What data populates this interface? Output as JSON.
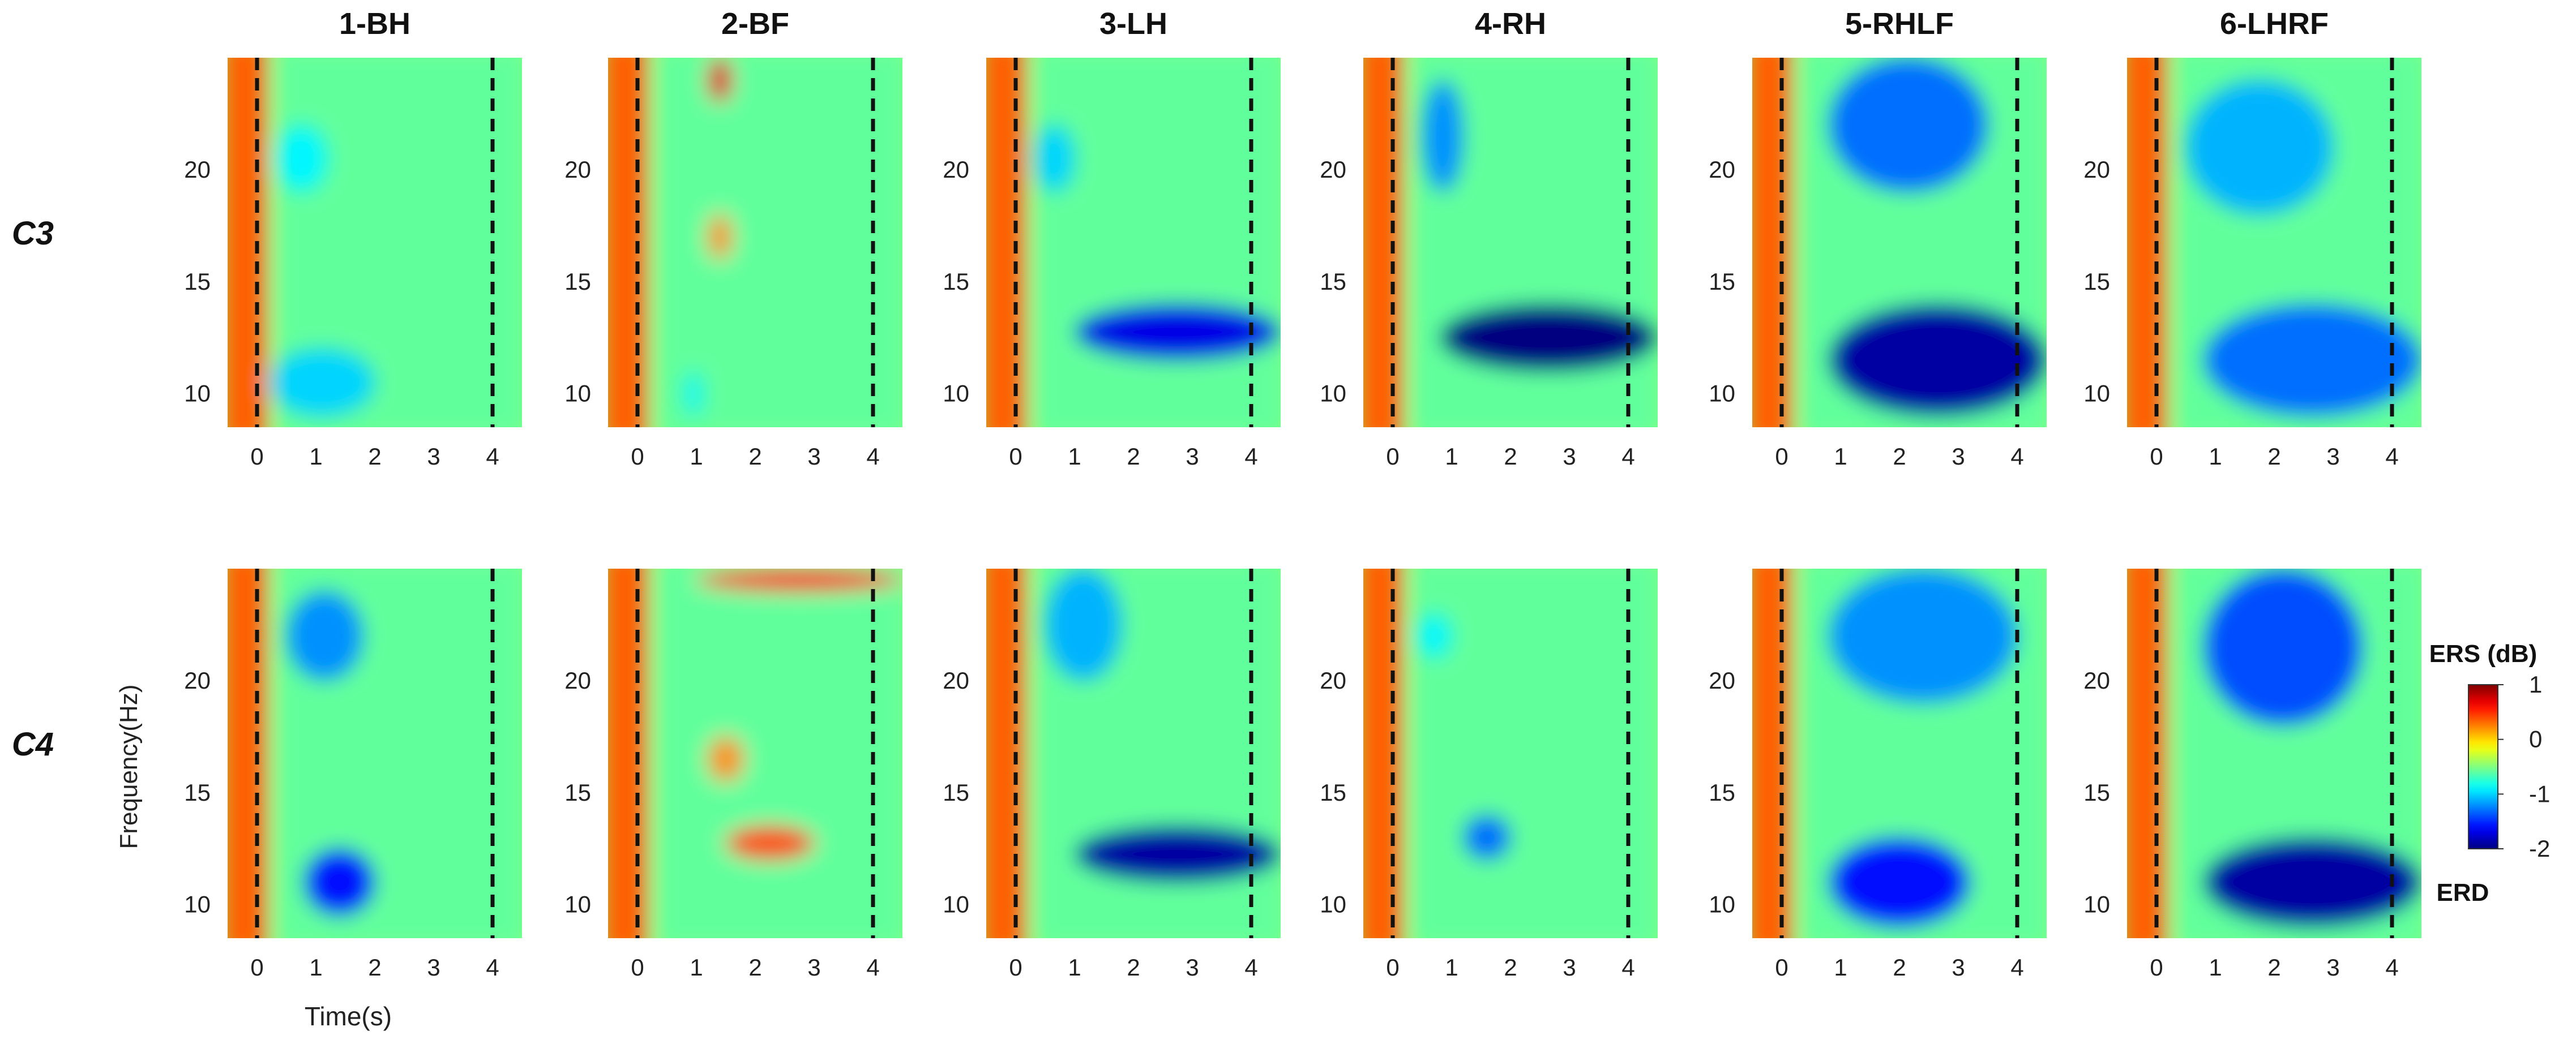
{
  "chart_data": {
    "type": "heatmap",
    "column_titles": [
      "1-BH",
      "2-BF",
      "3-LH",
      "4-RH",
      "5-RHLF",
      "6-LHRF"
    ],
    "row_labels": [
      "C3",
      "C4"
    ],
    "ylabel": "Frequency(Hz)",
    "xlabel": "Time(s)",
    "x_ticks": [
      0,
      1,
      2,
      3,
      4
    ],
    "y_ticks": [
      10,
      15,
      20
    ],
    "xlim": [
      -0.5,
      4.5
    ],
    "ylim": [
      8.5,
      25
    ],
    "event_markers": [
      0,
      4
    ],
    "colorbar": {
      "title": "ERS (dB)",
      "bottom_label": "ERD",
      "ticks": [
        1,
        0,
        -1,
        -2
      ],
      "tick_labels": [
        "1",
        "0",
        "-1",
        "-2"
      ],
      "range": [
        -2,
        1
      ],
      "colormap": "jet"
    },
    "panels": [
      {
        "row": "C3",
        "condition": "1-BH",
        "features": [
          {
            "t_range": [
              0.2,
              2.0
            ],
            "f_range": [
              9,
              12
            ],
            "value": -1.0
          },
          {
            "t_range": [
              0.3,
              1.2
            ],
            "f_range": [
              19,
              22
            ],
            "value": -0.9
          }
        ]
      },
      {
        "row": "C3",
        "condition": "2-BF",
        "features": [
          {
            "t_range": [
              1.2,
              1.6
            ],
            "f_range": [
              16,
              18
            ],
            "value": 0.2
          },
          {
            "t_range": [
              1.2,
              1.6
            ],
            "f_range": [
              23,
              25
            ],
            "value": 0.7
          },
          {
            "t_range": [
              0.8,
              1.1
            ],
            "f_range": [
              9,
              11
            ],
            "value": -0.9
          }
        ]
      },
      {
        "row": "C3",
        "condition": "3-LH",
        "features": [
          {
            "t_range": [
              1.0,
              4.5
            ],
            "f_range": [
              11.5,
              14
            ],
            "value": -1.7
          },
          {
            "t_range": [
              0.3,
              1.0
            ],
            "f_range": [
              19,
              22
            ],
            "value": -1.0
          }
        ]
      },
      {
        "row": "C3",
        "condition": "4-RH",
        "features": [
          {
            "t_range": [
              0.8,
              4.5
            ],
            "f_range": [
              11,
              14
            ],
            "value": -2.0
          },
          {
            "t_range": [
              0.5,
              1.2
            ],
            "f_range": [
              19,
              24
            ],
            "value": -1.2
          }
        ]
      },
      {
        "row": "C3",
        "condition": "5-RHLF",
        "features": [
          {
            "t_range": [
              0.8,
              4.5
            ],
            "f_range": [
              9,
              14
            ],
            "value": -1.9
          },
          {
            "t_range": [
              0.8,
              3.5
            ],
            "f_range": [
              19,
              25
            ],
            "value": -1.3
          }
        ]
      },
      {
        "row": "C3",
        "condition": "6-LHRF",
        "features": [
          {
            "t_range": [
              0.8,
              4.5
            ],
            "f_range": [
              9,
              14
            ],
            "value": -1.3
          },
          {
            "t_range": [
              0.5,
              3.0
            ],
            "f_range": [
              18,
              24
            ],
            "value": -1.1
          }
        ]
      },
      {
        "row": "C4",
        "condition": "1-BH",
        "features": [
          {
            "t_range": [
              0.8,
              2.0
            ],
            "f_range": [
              9.5,
              12.5
            ],
            "value": -1.6
          },
          {
            "t_range": [
              0.5,
              1.8
            ],
            "f_range": [
              20,
              24
            ],
            "value": -1.2
          }
        ]
      },
      {
        "row": "C4",
        "condition": "2-BF",
        "features": [
          {
            "t_range": [
              1.5,
              3.0
            ],
            "f_range": [
              12,
              13.5
            ],
            "value": 0.4
          },
          {
            "t_range": [
              1.2,
              1.8
            ],
            "f_range": [
              15.5,
              17.5
            ],
            "value": 0.2
          },
          {
            "t_range": [
              1.0,
              4.5
            ],
            "f_range": [
              24,
              25
            ],
            "value": 0.5
          }
        ]
      },
      {
        "row": "C4",
        "condition": "3-LH",
        "features": [
          {
            "t_range": [
              1.0,
              4.5
            ],
            "f_range": [
              11,
              13.5
            ],
            "value": -1.9
          },
          {
            "t_range": [
              0.5,
              1.8
            ],
            "f_range": [
              20,
              25
            ],
            "value": -1.1
          }
        ]
      },
      {
        "row": "C4",
        "condition": "4-RH",
        "features": [
          {
            "t_range": [
              1.2,
              2.0
            ],
            "f_range": [
              12,
              14
            ],
            "value": -1.3
          },
          {
            "t_range": [
              0.4,
              1.0
            ],
            "f_range": [
              21,
              23
            ],
            "value": -0.9
          }
        ]
      },
      {
        "row": "C4",
        "condition": "5-RHLF",
        "features": [
          {
            "t_range": [
              0.8,
              3.2
            ],
            "f_range": [
              9,
              13
            ],
            "value": -1.6
          },
          {
            "t_range": [
              0.8,
              4.0
            ],
            "f_range": [
              19,
              25
            ],
            "value": -1.2
          }
        ]
      },
      {
        "row": "C4",
        "condition": "6-LHRF",
        "features": [
          {
            "t_range": [
              0.8,
              4.5
            ],
            "f_range": [
              9,
              13
            ],
            "value": -1.9
          },
          {
            "t_range": [
              0.8,
              3.5
            ],
            "f_range": [
              18,
              25
            ],
            "value": -1.4
          }
        ]
      }
    ]
  },
  "colors": {
    "dashed_marker": "#111111",
    "text": "#222222",
    "onset_band": "#f39a1c",
    "background_mid": "#68e6a8"
  }
}
